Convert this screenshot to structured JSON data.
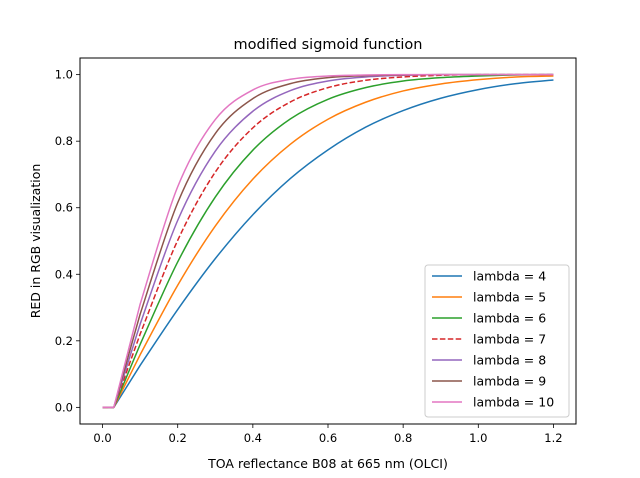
{
  "chart_data": {
    "type": "line",
    "title": "modified sigmoid function",
    "xlabel": "TOA reflectance B08 at 665 nm (OLCI)",
    "ylabel": "RED in RGB visualization",
    "xlim": [
      -0.06,
      1.26
    ],
    "ylim": [
      -0.05,
      1.05
    ],
    "xticks": [
      0.0,
      0.2,
      0.4,
      0.6,
      0.8,
      1.0,
      1.2
    ],
    "xtick_labels": [
      "0.0",
      "0.2",
      "0.4",
      "0.6",
      "0.8",
      "1.0",
      "1.2"
    ],
    "yticks": [
      0.0,
      0.2,
      0.4,
      0.6,
      0.8,
      1.0
    ],
    "ytick_labels": [
      "0.0",
      "0.2",
      "0.4",
      "0.6",
      "0.8",
      "1.0"
    ],
    "grid": false,
    "legend_position": "lower-right",
    "x": [
      0.0,
      0.03,
      0.1,
      0.2,
      0.3,
      0.4,
      0.5,
      0.6,
      0.7,
      0.8,
      0.9,
      1.0,
      1.1,
      1.2
    ],
    "series": [
      {
        "name": "lambda = 4",
        "color": "#1f77b4",
        "dash": "solid",
        "values": [
          0.0,
          0.0,
          0.126,
          0.294,
          0.447,
          0.579,
          0.688,
          0.774,
          0.842,
          0.892,
          0.929,
          0.955,
          0.973,
          0.984
        ]
      },
      {
        "name": "lambda = 5",
        "color": "#ff7f0e",
        "dash": "solid",
        "values": [
          0.0,
          0.0,
          0.158,
          0.367,
          0.545,
          0.686,
          0.791,
          0.866,
          0.917,
          0.951,
          0.972,
          0.985,
          0.993,
          0.996
        ]
      },
      {
        "name": "lambda = 6",
        "color": "#2ca02c",
        "dash": "solid",
        "values": [
          0.0,
          0.0,
          0.189,
          0.437,
          0.632,
          0.773,
          0.867,
          0.926,
          0.961,
          0.981,
          0.991,
          0.996,
          0.999,
          1.0
        ]
      },
      {
        "name": "lambda = 7",
        "color": "#d62728",
        "dash": "dashed",
        "values": [
          0.0,
          0.0,
          0.22,
          0.502,
          0.707,
          0.84,
          0.918,
          0.961,
          0.983,
          0.993,
          0.998,
          1.0,
          1.0,
          1.0
        ]
      },
      {
        "name": "lambda = 8",
        "color": "#9467bd",
        "dash": "solid",
        "values": [
          0.0,
          0.0,
          0.25,
          0.562,
          0.77,
          0.89,
          0.952,
          0.981,
          0.993,
          0.998,
          1.0,
          1.0,
          1.0,
          1.0
        ]
      },
      {
        "name": "lambda = 9",
        "color": "#8c564b",
        "dash": "solid",
        "values": [
          0.0,
          0.0,
          0.28,
          0.615,
          0.823,
          0.928,
          0.973,
          0.991,
          0.997,
          0.999,
          1.0,
          1.0,
          1.0,
          1.0
        ]
      },
      {
        "name": "lambda = 10",
        "color": "#e377c2",
        "dash": "solid",
        "values": [
          0.0,
          0.0,
          0.31,
          0.663,
          0.865,
          0.954,
          0.986,
          0.996,
          0.999,
          1.0,
          1.0,
          1.0,
          1.0,
          1.0
        ]
      }
    ]
  }
}
